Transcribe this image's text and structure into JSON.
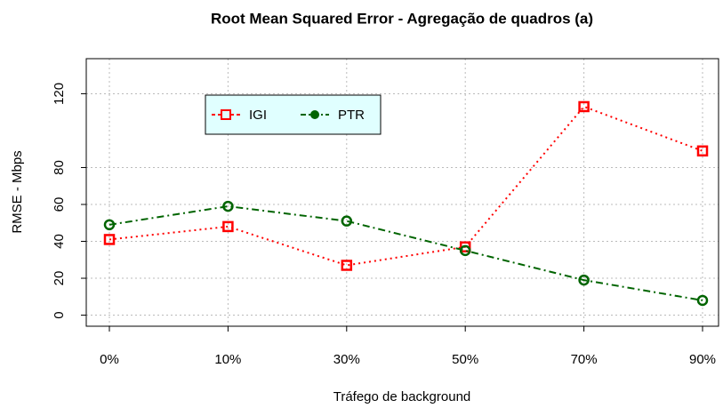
{
  "chart_data": {
    "type": "line",
    "title": "Root Mean Squared Error - Agregação de quadros (a)",
    "x_label": "Tráfego de background",
    "y_label": "RMSE - Mbps",
    "categories": [
      "0%",
      "10%",
      "30%",
      "50%",
      "70%",
      "90%"
    ],
    "series": [
      {
        "name": "IGI",
        "color": "#ff0000",
        "values": [
          41,
          48,
          27,
          37,
          113,
          89
        ]
      },
      {
        "name": "PTR",
        "color": "#006400",
        "values": [
          49,
          59,
          51,
          35,
          19,
          8
        ]
      }
    ],
    "ylim": [
      -6,
      139
    ],
    "yticks": [
      0,
      20,
      40,
      60,
      80,
      120
    ],
    "grid": true
  }
}
